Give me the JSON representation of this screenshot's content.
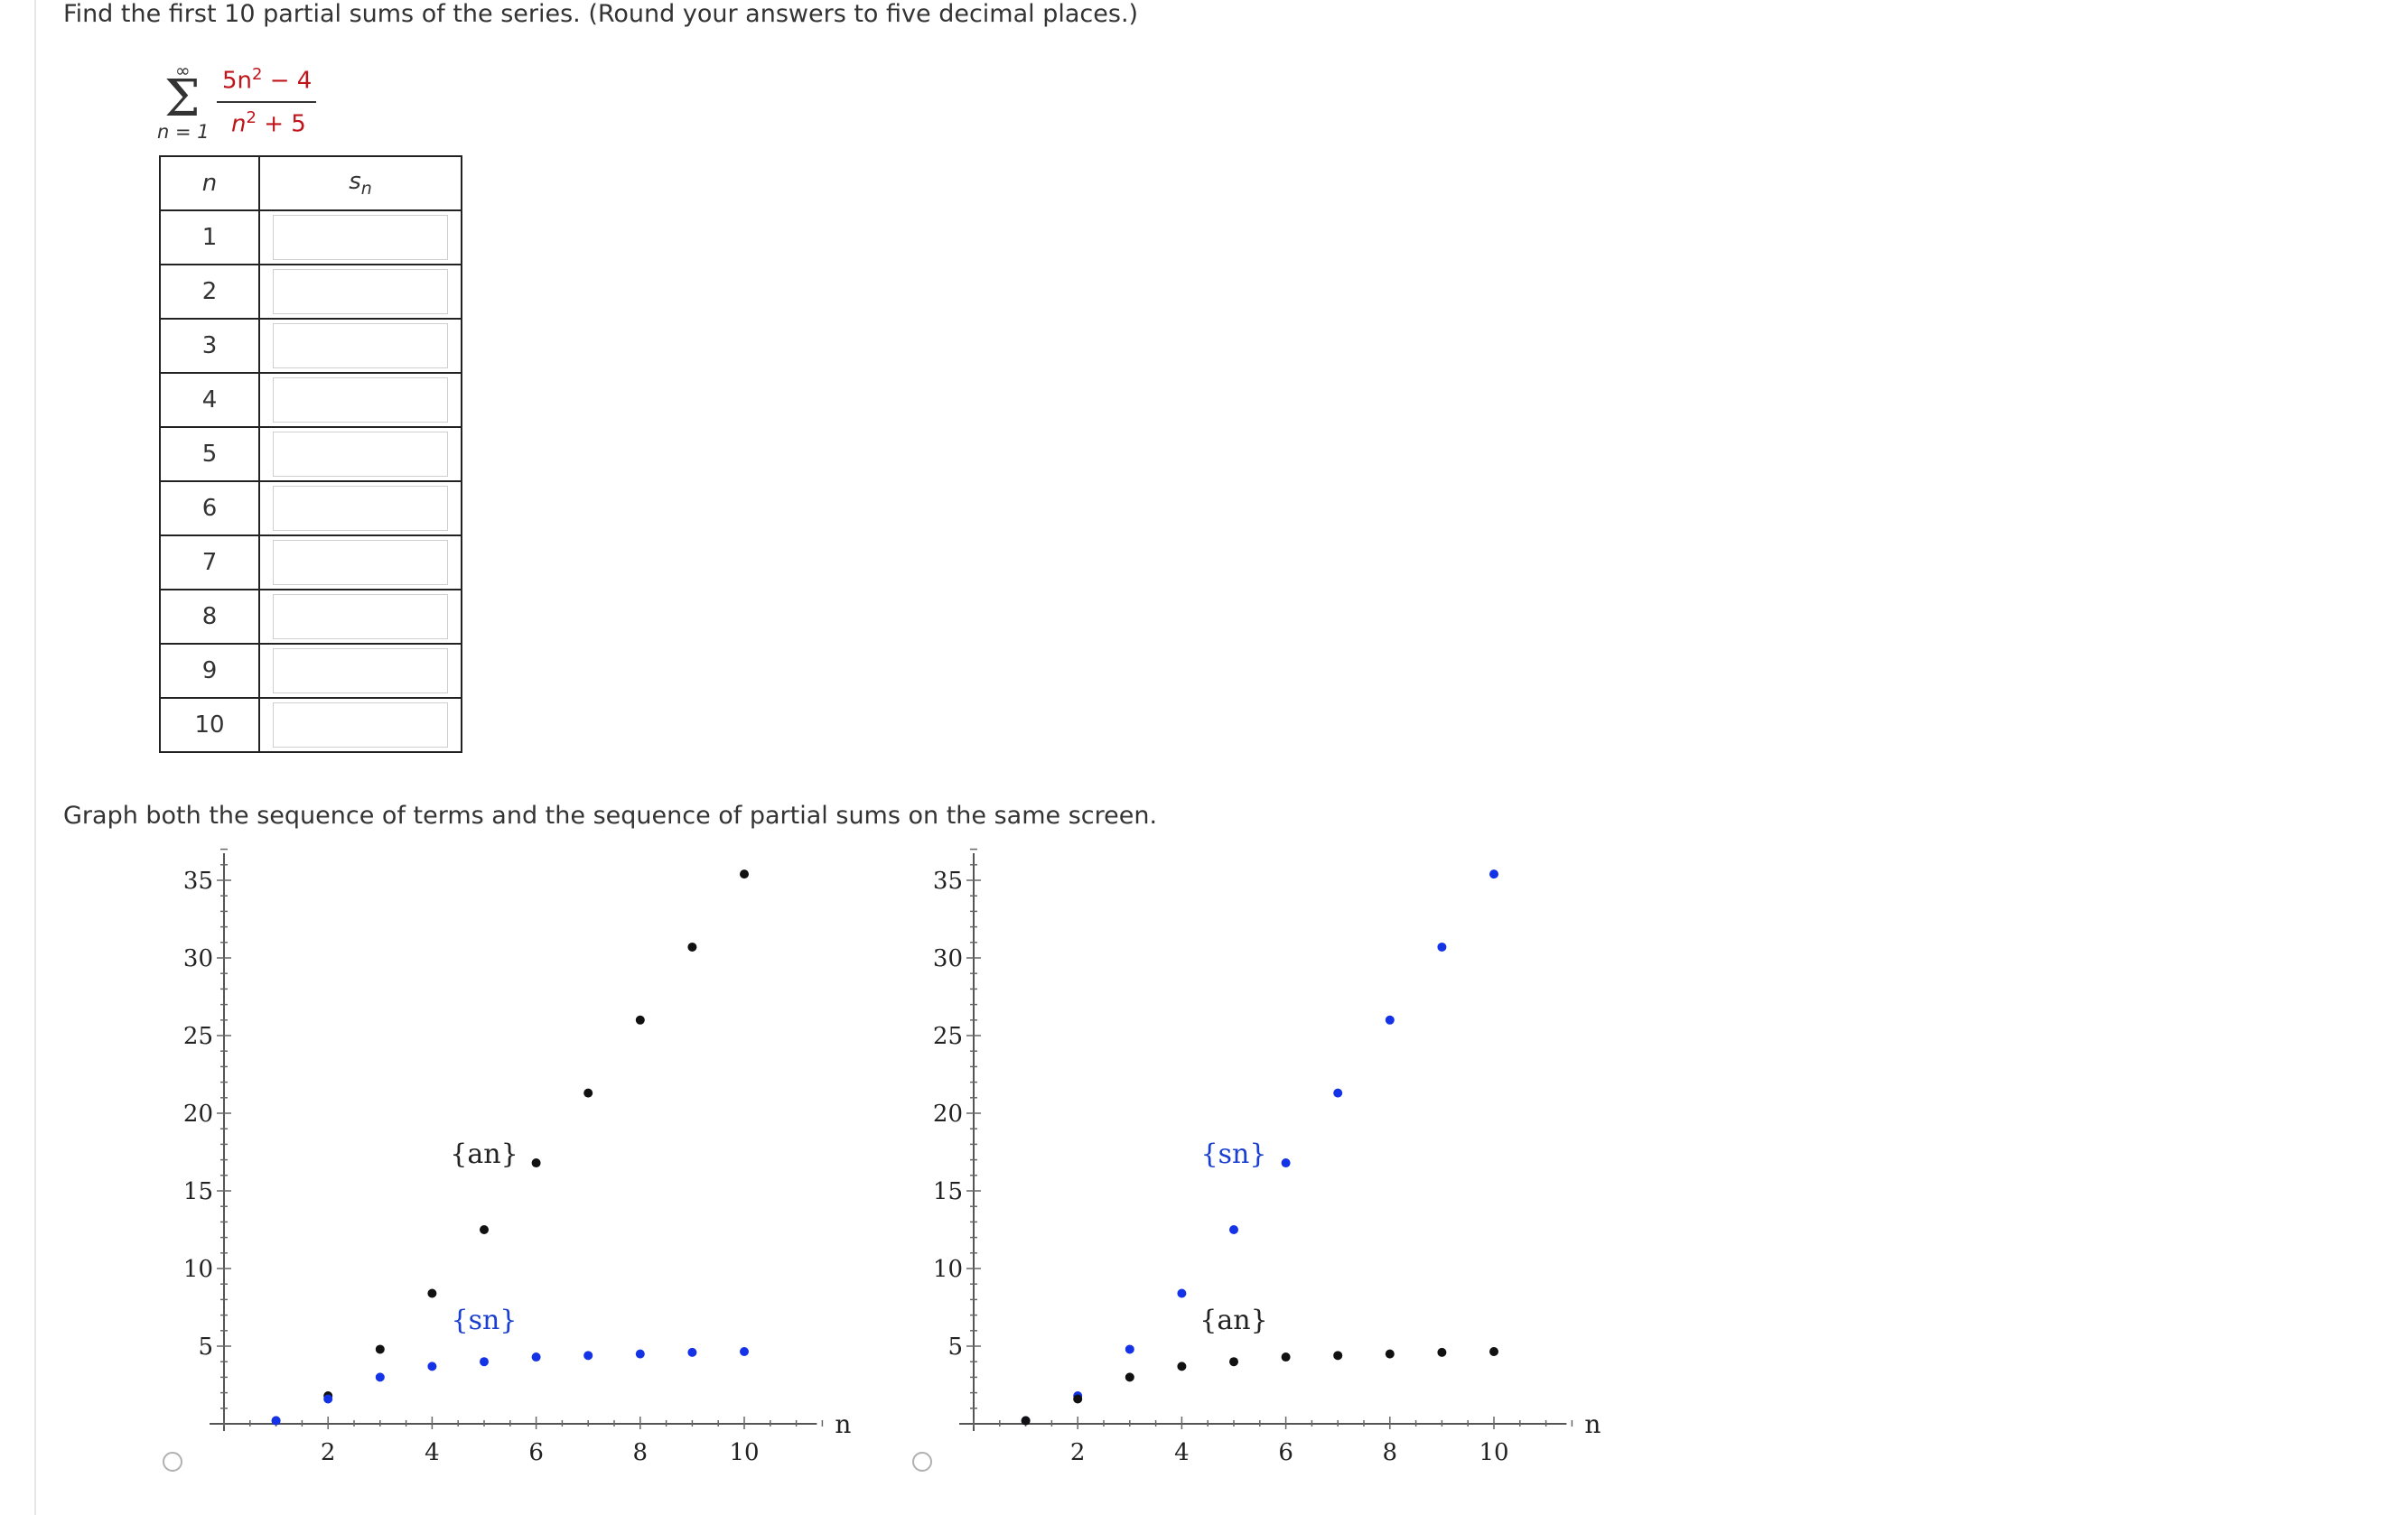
{
  "question1": {
    "text": "Find the first 10 partial sums of the series. (Round your answers to five decimal places.)",
    "series": {
      "upper": "∞",
      "lower": "n = 1",
      "numerator": "5n",
      "numerator_exp": "2",
      "numerator_tail": " − 4",
      "denominator": "n",
      "denominator_exp": "2",
      "denominator_tail": " + 5"
    }
  },
  "table": {
    "header_n": "n",
    "header_s": "s",
    "header_s_sub": "n",
    "rows": [
      {
        "n": "1",
        "value": ""
      },
      {
        "n": "2",
        "value": ""
      },
      {
        "n": "3",
        "value": ""
      },
      {
        "n": "4",
        "value": ""
      },
      {
        "n": "5",
        "value": ""
      },
      {
        "n": "6",
        "value": ""
      },
      {
        "n": "7",
        "value": ""
      },
      {
        "n": "8",
        "value": ""
      },
      {
        "n": "9",
        "value": ""
      },
      {
        "n": "10",
        "value": ""
      }
    ]
  },
  "question2": {
    "text": "Graph both the sequence of terms and the sequence of partial sums on the same screen."
  },
  "colors": {
    "an_left": "#111111",
    "sn_left": "#1533e6",
    "label_blue": "#1a3fd0"
  },
  "chart_data": [
    {
      "type": "scatter",
      "xlabel": "n",
      "ylabel": "",
      "xlim": [
        0,
        11.5
      ],
      "ylim": [
        0,
        35
      ],
      "xticks": [
        2,
        4,
        6,
        8,
        10
      ],
      "yticks": [
        5,
        10,
        15,
        20,
        25,
        30,
        35
      ],
      "series": [
        {
          "name": "{an}",
          "color": "#111111",
          "x": [
            1,
            2,
            3,
            4,
            5,
            6,
            7,
            8,
            9,
            10
          ],
          "y": [
            0.2,
            1.8,
            4.8,
            8.4,
            12.5,
            16.8,
            21.3,
            26.0,
            30.7,
            35.4
          ]
        },
        {
          "name": "{sn}",
          "color": "#1533e6",
          "x": [
            1,
            2,
            3,
            4,
            5,
            6,
            7,
            8,
            9,
            10
          ],
          "y": [
            0.2,
            1.6,
            3.0,
            3.7,
            4.0,
            4.3,
            4.4,
            4.5,
            4.6,
            4.65
          ]
        }
      ],
      "labels": [
        {
          "text": "{an}",
          "x": 5,
          "y": 16.8,
          "color": "#222222"
        },
        {
          "text": "{sn}",
          "x": 5,
          "y": 6.1,
          "color": "#1a3fd0"
        }
      ]
    },
    {
      "type": "scatter",
      "xlabel": "n",
      "ylabel": "",
      "xlim": [
        0,
        11.5
      ],
      "ylim": [
        0,
        35
      ],
      "xticks": [
        2,
        4,
        6,
        8,
        10
      ],
      "yticks": [
        5,
        10,
        15,
        20,
        25,
        30,
        35
      ],
      "series": [
        {
          "name": "{sn}",
          "color": "#1533e6",
          "x": [
            1,
            2,
            3,
            4,
            5,
            6,
            7,
            8,
            9,
            10
          ],
          "y": [
            0.2,
            1.8,
            4.8,
            8.4,
            12.5,
            16.8,
            21.3,
            26.0,
            30.7,
            35.4
          ]
        },
        {
          "name": "{an}",
          "color": "#111111",
          "x": [
            1,
            2,
            3,
            4,
            5,
            6,
            7,
            8,
            9,
            10
          ],
          "y": [
            0.2,
            1.6,
            3.0,
            3.7,
            4.0,
            4.3,
            4.4,
            4.5,
            4.6,
            4.65
          ]
        }
      ],
      "labels": [
        {
          "text": "{sn}",
          "x": 5,
          "y": 16.8,
          "color": "#1a3fd0"
        },
        {
          "text": "{an}",
          "x": 5,
          "y": 6.1,
          "color": "#222222"
        }
      ]
    }
  ]
}
